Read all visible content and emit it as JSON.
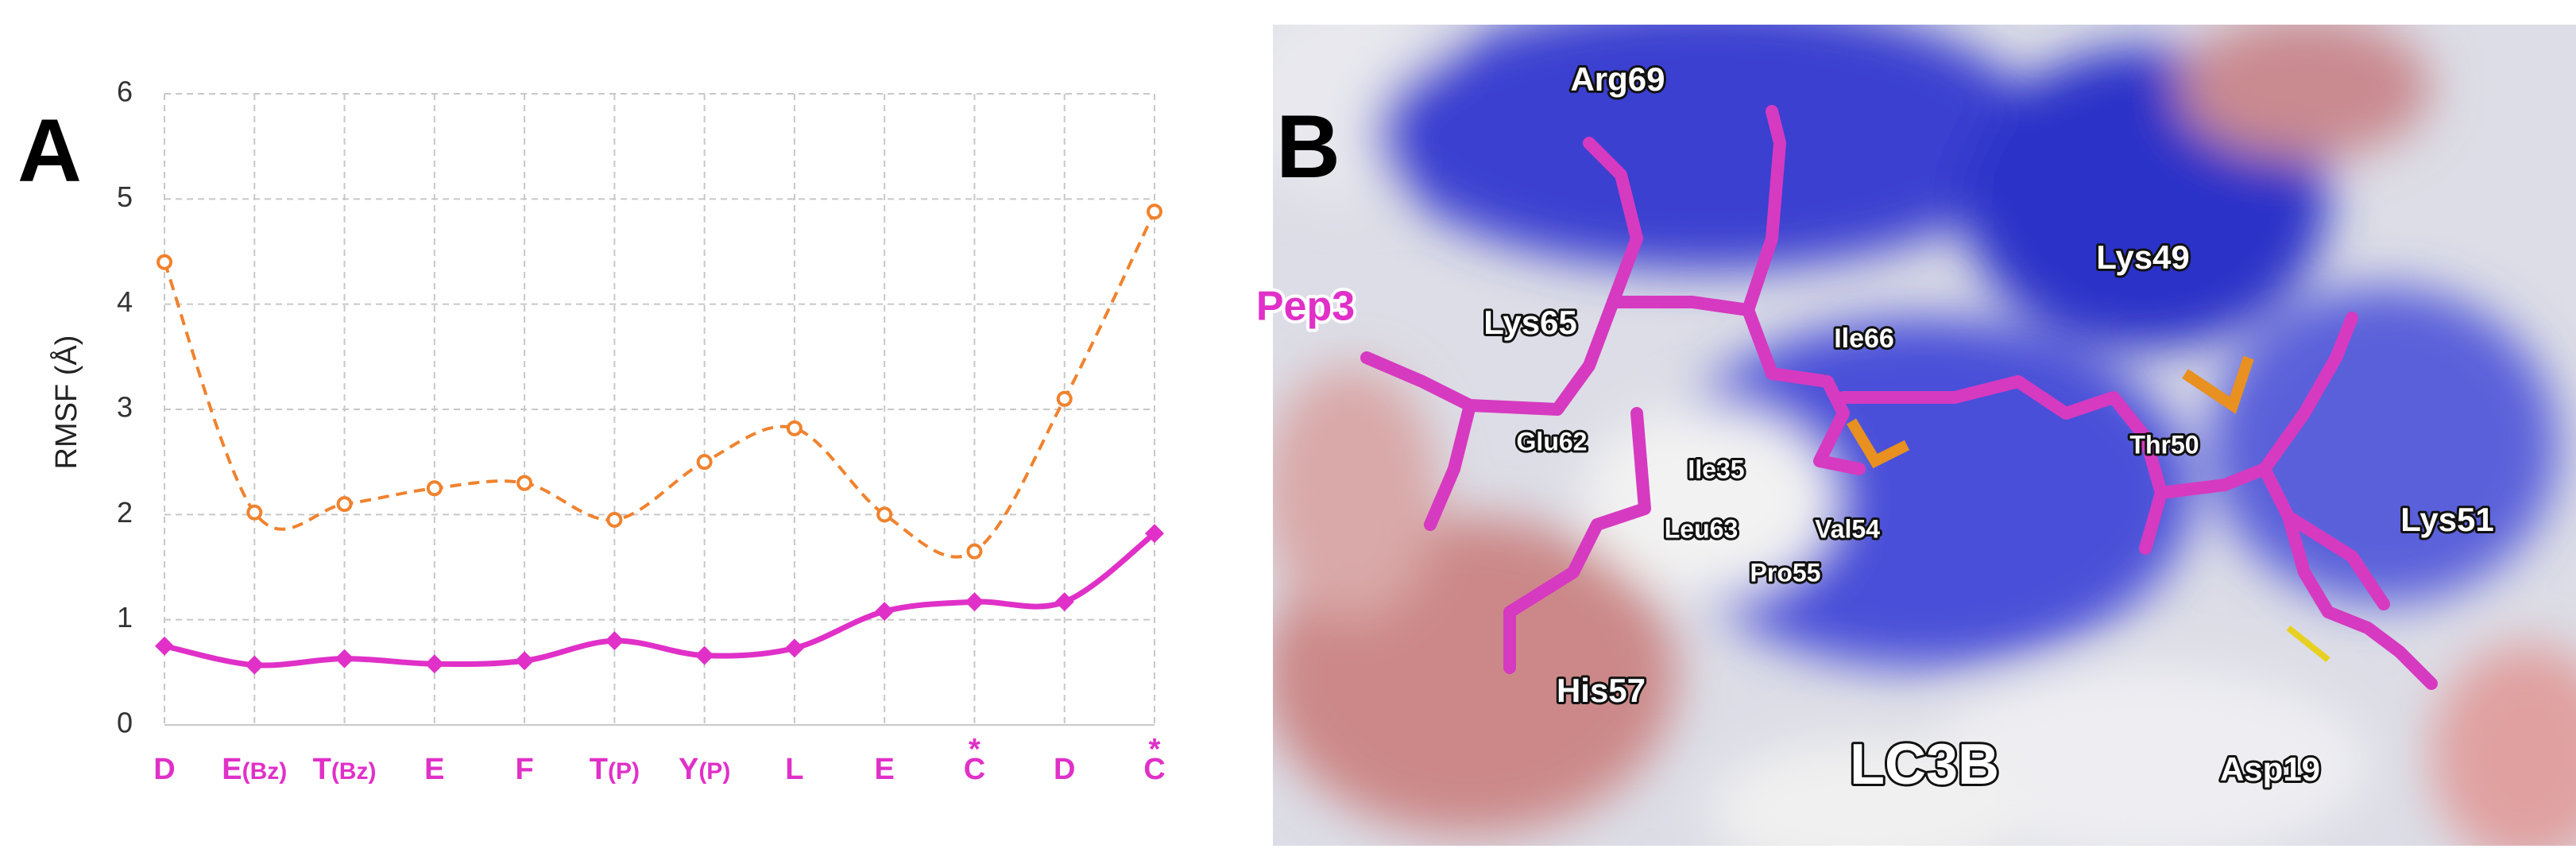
{
  "chart_data": {
    "type": "line",
    "panel_label": "A",
    "ylabel": "RMSF (Å)",
    "categories": [
      "D",
      "E",
      "T",
      "E",
      "F",
      "T",
      "Y",
      "L",
      "E",
      "C",
      "D",
      "C"
    ],
    "category_subscripts": [
      null,
      "(Bz)",
      "(Bz)",
      null,
      null,
      "(P)",
      "(P)",
      null,
      null,
      null,
      null,
      null
    ],
    "category_marks": [
      null,
      null,
      null,
      null,
      null,
      null,
      null,
      null,
      null,
      "*",
      null,
      "*"
    ],
    "series": [
      {
        "color": "#f0822e",
        "style": "dashed",
        "marker": "circle",
        "values": [
          4.4,
          2.02,
          2.1,
          2.25,
          2.3,
          1.95,
          2.5,
          2.82,
          2.0,
          1.65,
          3.1,
          4.88
        ]
      },
      {
        "color": "#e030c8",
        "style": "solid",
        "marker": "diamond",
        "values": [
          0.75,
          0.57,
          0.63,
          0.58,
          0.61,
          0.8,
          0.66,
          0.73,
          1.08,
          1.17,
          1.17,
          1.82
        ]
      }
    ],
    "ylim": [
      0,
      6
    ],
    "yticks": [
      0,
      1,
      2,
      3,
      4,
      5,
      6
    ],
    "grid": true
  },
  "panel_b": {
    "letter": "B",
    "labels": [
      "Arg69",
      "Pep3",
      "Lys65",
      "Ile66",
      "Lys49",
      "Glu62",
      "Thr50",
      "Ile35",
      "Leu63",
      "Val54",
      "Pro55",
      "Lys51",
      "His57",
      "LC3B",
      "Asp19"
    ]
  }
}
